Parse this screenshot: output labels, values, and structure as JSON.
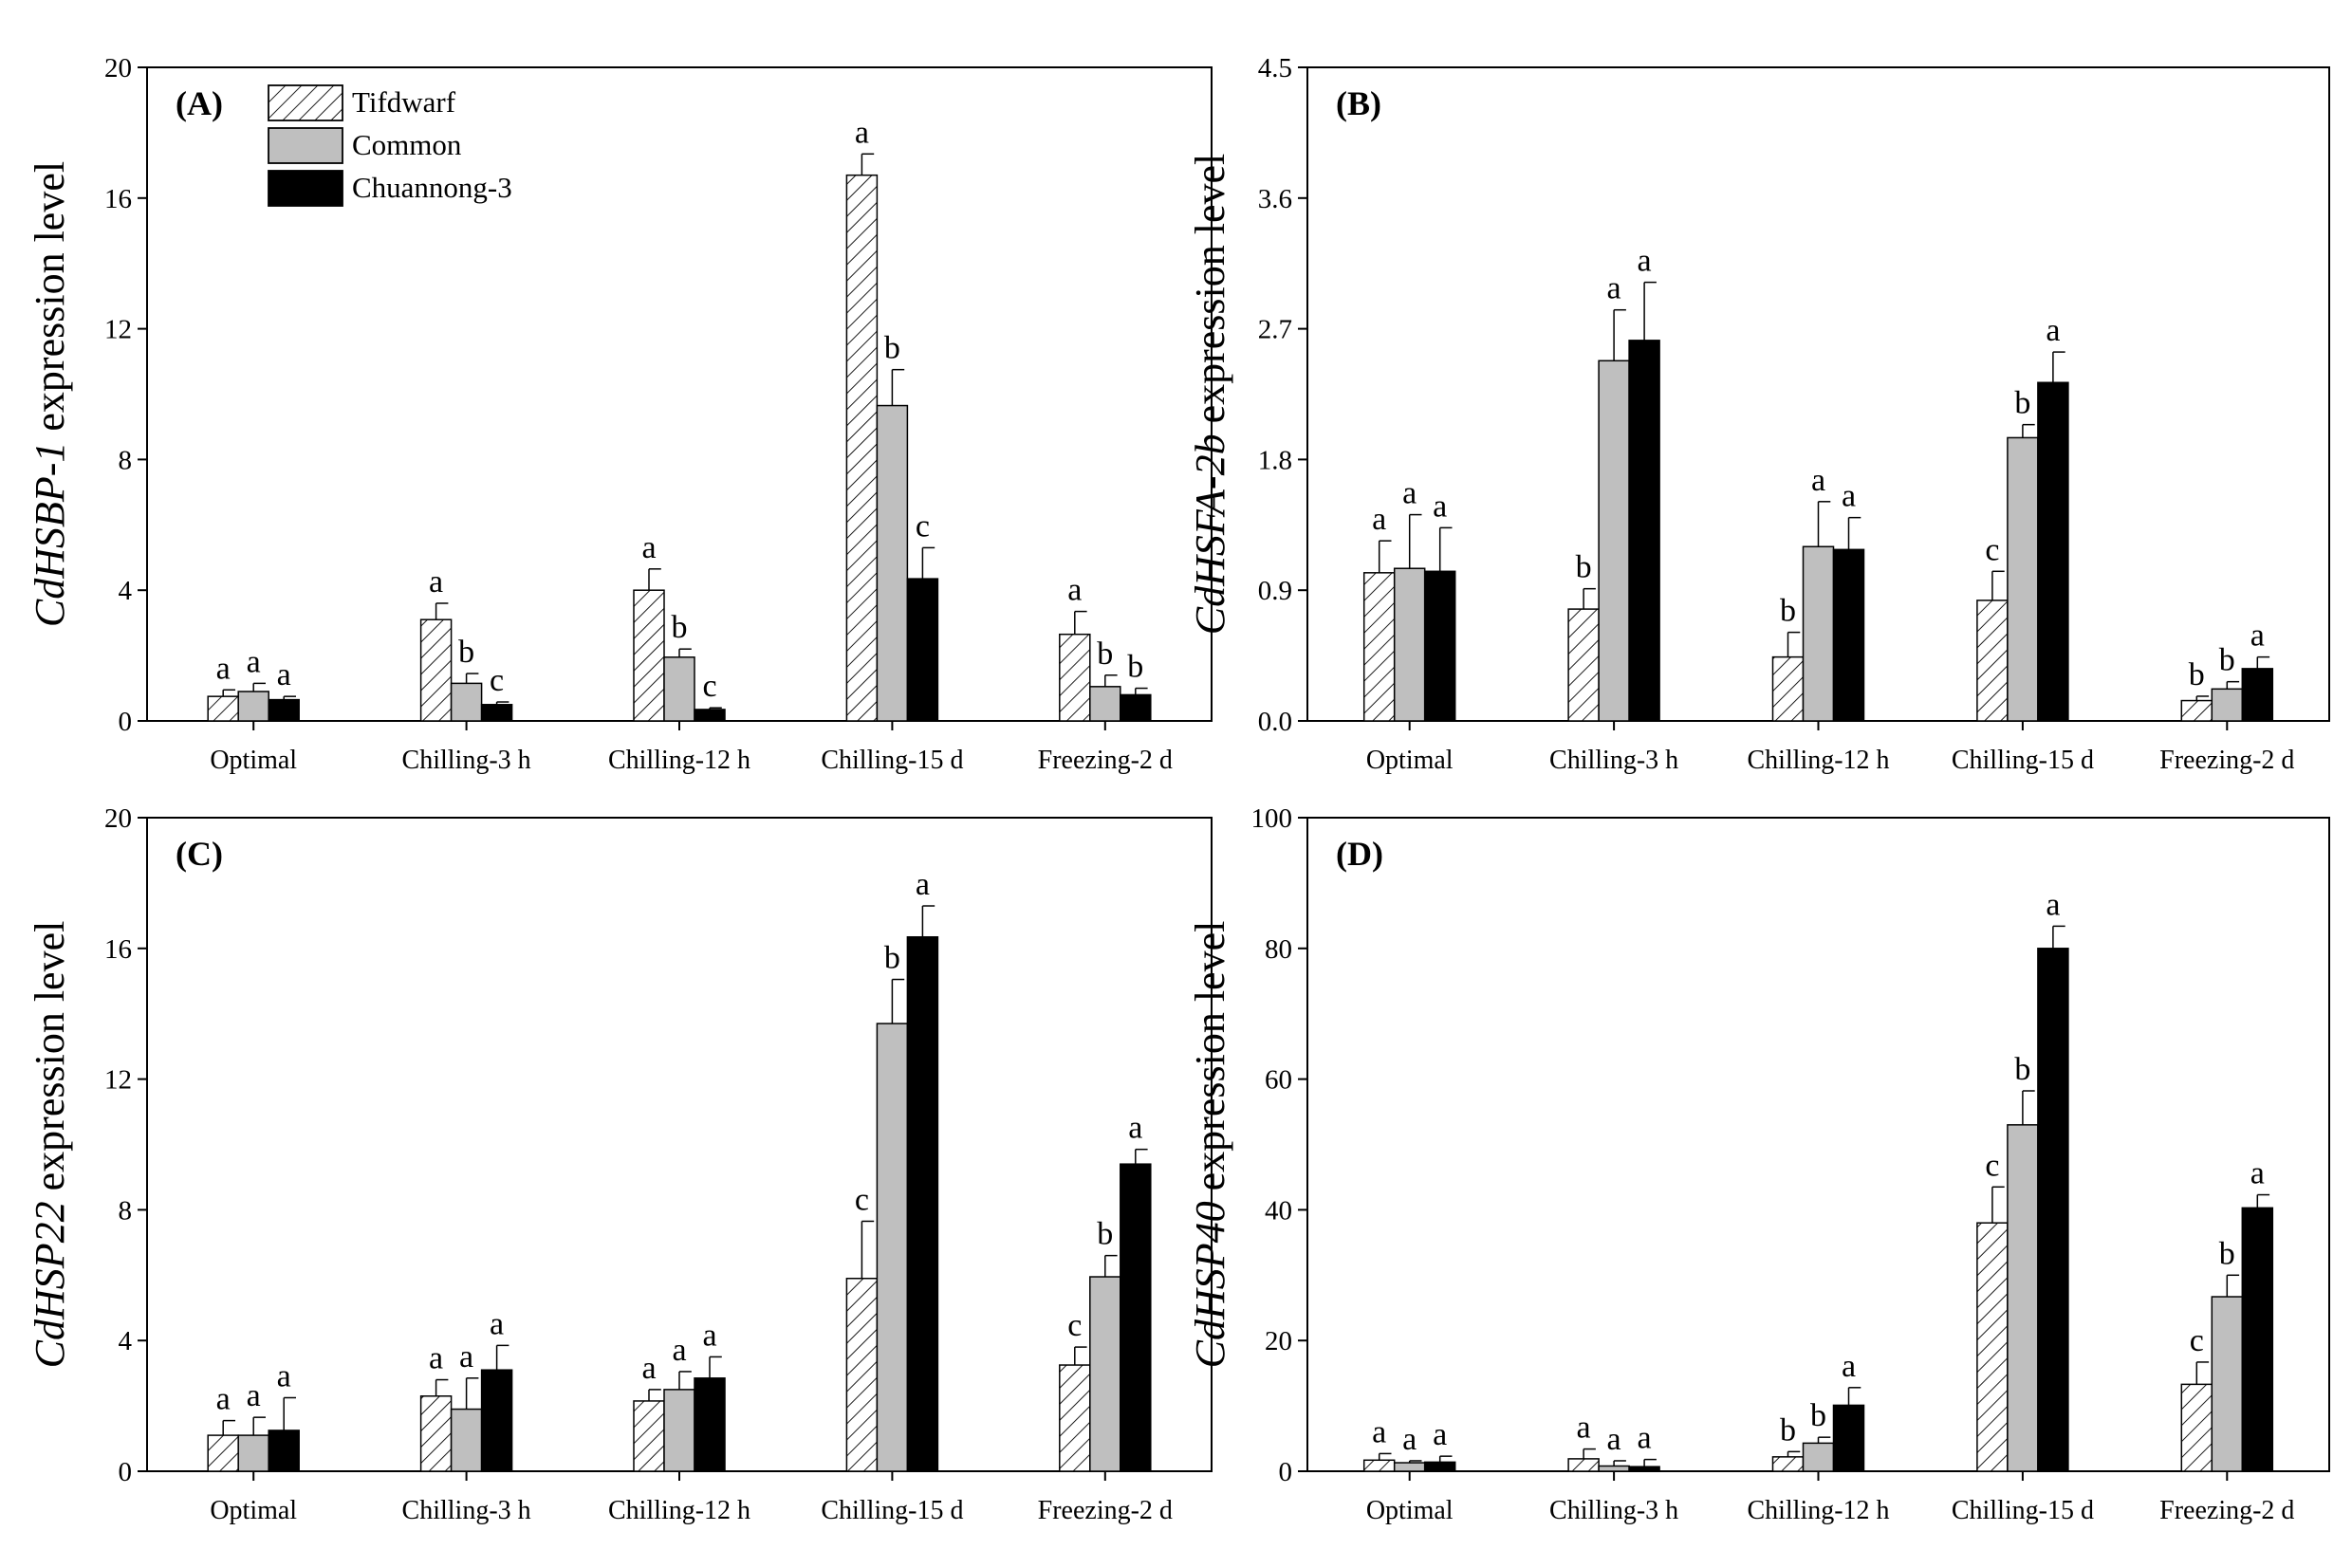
{
  "legend": {
    "items": [
      {
        "label": "Tifdwarf",
        "pattern": "hatch"
      },
      {
        "label": "Common",
        "color": "#bfbfbf"
      },
      {
        "label": "Chuannong-3",
        "color": "#000000"
      }
    ]
  },
  "colors": {
    "tifdwarf": "#ffffff",
    "common": "#bfbfbf",
    "chuannong": "#000000"
  },
  "chart_data": [
    {
      "type": "bar",
      "panel": "(A)",
      "ylabel_italic": "CdHSBP-1",
      "ylabel_rest": " expression level",
      "categories": [
        "Optimal",
        "Chilling-3 h",
        "Chilling-12 h",
        "Chilling-15 d",
        "Freezing-2 d"
      ],
      "ylim": [
        0,
        20
      ],
      "yticks": [
        0,
        4,
        8,
        12,
        16,
        20
      ],
      "ytick_labels": [
        "0",
        "4",
        "8",
        "12",
        "16",
        "20"
      ],
      "series": [
        {
          "name": "Tifdwarf",
          "values": [
            0.75,
            3.1,
            4.0,
            16.7,
            2.65
          ],
          "errors": [
            0.2,
            0.5,
            0.65,
            0.65,
            0.7
          ],
          "labels": [
            "a",
            "a",
            "a",
            "a",
            "a"
          ]
        },
        {
          "name": "Common",
          "values": [
            0.9,
            1.15,
            1.95,
            9.65,
            1.05
          ],
          "errors": [
            0.25,
            0.3,
            0.25,
            1.1,
            0.35
          ],
          "labels": [
            "a",
            "b",
            "b",
            "b",
            "b"
          ]
        },
        {
          "name": "Chuannong-3",
          "values": [
            0.65,
            0.5,
            0.35,
            4.35,
            0.8
          ],
          "errors": [
            0.1,
            0.08,
            0.05,
            0.95,
            0.2
          ],
          "labels": [
            "a",
            "c",
            "c",
            "c",
            "b"
          ]
        }
      ]
    },
    {
      "type": "bar",
      "panel": "(B)",
      "ylabel_italic": "CdHSFA-2b",
      "ylabel_rest": " expression level",
      "categories": [
        "Optimal",
        "Chilling-3 h",
        "Chilling-12 h",
        "Chilling-15 d",
        "Freezing-2 d"
      ],
      "ylim": [
        0,
        4.5
      ],
      "yticks": [
        0,
        0.9,
        1.8,
        2.7,
        3.6,
        4.5
      ],
      "ytick_labels": [
        "0.0",
        "0.9",
        "1.8",
        "2.7",
        "3.6",
        "4.5"
      ],
      "series": [
        {
          "name": "Tifdwarf",
          "values": [
            1.02,
            0.77,
            0.44,
            0.83,
            0.14
          ],
          "errors": [
            0.22,
            0.14,
            0.17,
            0.2,
            0.03
          ],
          "labels": [
            "a",
            "b",
            "b",
            "c",
            "b"
          ]
        },
        {
          "name": "Common",
          "values": [
            1.05,
            2.48,
            1.2,
            1.95,
            0.22
          ],
          "errors": [
            0.37,
            0.35,
            0.31,
            0.09,
            0.05
          ],
          "labels": [
            "a",
            "a",
            "a",
            "b",
            "b"
          ]
        },
        {
          "name": "Chuannong-3",
          "values": [
            1.03,
            2.62,
            1.18,
            2.33,
            0.36
          ],
          "errors": [
            0.3,
            0.4,
            0.22,
            0.21,
            0.08
          ],
          "labels": [
            "a",
            "a",
            "a",
            "a",
            "a"
          ]
        }
      ]
    },
    {
      "type": "bar",
      "panel": "(C)",
      "ylabel_italic": "CdHSP22",
      "ylabel_rest": " expression level",
      "categories": [
        "Optimal",
        "Chilling-3 h",
        "Chilling-12 h",
        "Chilling-15 d",
        "Freezing-2 d"
      ],
      "ylim": [
        0,
        20
      ],
      "yticks": [
        0,
        4,
        8,
        12,
        16,
        20
      ],
      "ytick_labels": [
        "0",
        "4",
        "8",
        "12",
        "16",
        "20"
      ],
      "series": [
        {
          "name": "Tifdwarf",
          "values": [
            1.1,
            2.3,
            2.15,
            5.9,
            3.25
          ],
          "errors": [
            0.45,
            0.5,
            0.35,
            1.75,
            0.55
          ],
          "labels": [
            "a",
            "a",
            "a",
            "c",
            "c"
          ]
        },
        {
          "name": "Common",
          "values": [
            1.1,
            1.9,
            2.5,
            13.7,
            5.95
          ],
          "errors": [
            0.55,
            0.95,
            0.55,
            1.35,
            0.65
          ],
          "labels": [
            "a",
            "a",
            "a",
            "b",
            "b"
          ]
        },
        {
          "name": "Chuannong-3",
          "values": [
            1.25,
            3.1,
            2.85,
            16.35,
            9.4
          ],
          "errors": [
            1.0,
            0.75,
            0.65,
            0.95,
            0.45
          ],
          "labels": [
            "a",
            "a",
            "a",
            "a",
            "a"
          ]
        }
      ]
    },
    {
      "type": "bar",
      "panel": "(D)",
      "ylabel_italic": "CdHSP40",
      "ylabel_rest": " expression level",
      "categories": [
        "Optimal",
        "Chilling-3 h",
        "Chilling-12 h",
        "Chilling-15 d",
        "Freezing-2 d"
      ],
      "ylim": [
        0,
        100
      ],
      "yticks": [
        0,
        20,
        40,
        60,
        80,
        100
      ],
      "ytick_labels": [
        "0",
        "20",
        "40",
        "60",
        "80",
        "100"
      ],
      "series": [
        {
          "name": "Tifdwarf",
          "values": [
            1.7,
            1.9,
            2.2,
            38,
            13.3
          ],
          "errors": [
            1.0,
            1.5,
            0.8,
            5.5,
            3.4
          ],
          "labels": [
            "a",
            "a",
            "b",
            "c",
            "c"
          ]
        },
        {
          "name": "Common",
          "values": [
            1.3,
            0.8,
            4.3,
            53,
            26.7
          ],
          "errors": [
            0.3,
            0.8,
            0.9,
            5.2,
            3.3
          ],
          "labels": [
            "a",
            "a",
            "b",
            "b",
            "b"
          ]
        },
        {
          "name": "Chuannong-3",
          "values": [
            1.4,
            0.7,
            10.1,
            80,
            40.3
          ],
          "errors": [
            0.9,
            1.1,
            2.7,
            3.4,
            2.0
          ],
          "labels": [
            "a",
            "a",
            "a",
            "a",
            "a"
          ]
        }
      ]
    }
  ]
}
